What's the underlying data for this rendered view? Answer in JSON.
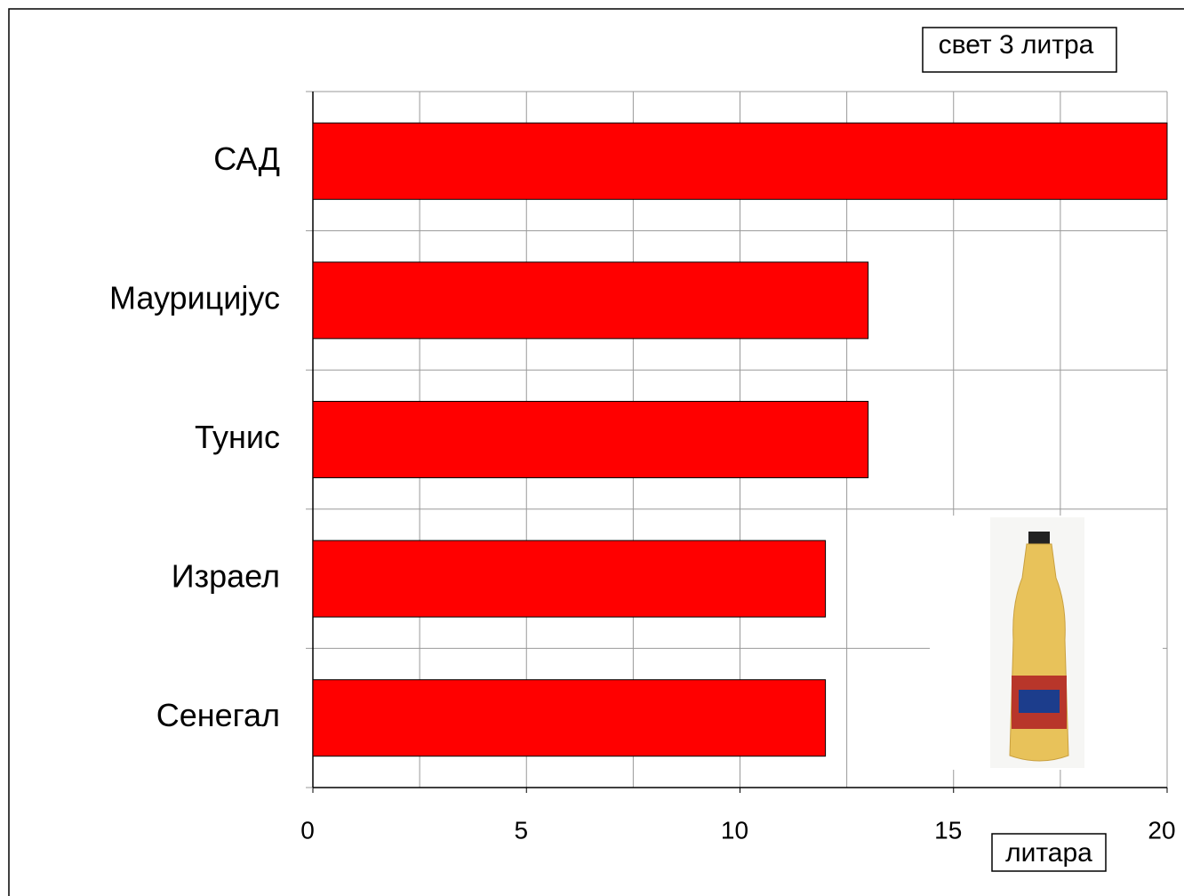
{
  "chart_data": {
    "type": "barh",
    "title": "свет 3 литра",
    "x_label": "литара",
    "categories": [
      "САД",
      "Маурицијус",
      "Тунис",
      "Израел",
      "Сенегал"
    ],
    "values": [
      20,
      13,
      13,
      12,
      12
    ],
    "color": "#ff0000",
    "xlim": [
      0,
      20
    ],
    "xticks": [
      0,
      5,
      10,
      15,
      20
    ],
    "minor_xticks": [
      2.5,
      7.5,
      12.5,
      17.5
    ],
    "grid": true
  }
}
